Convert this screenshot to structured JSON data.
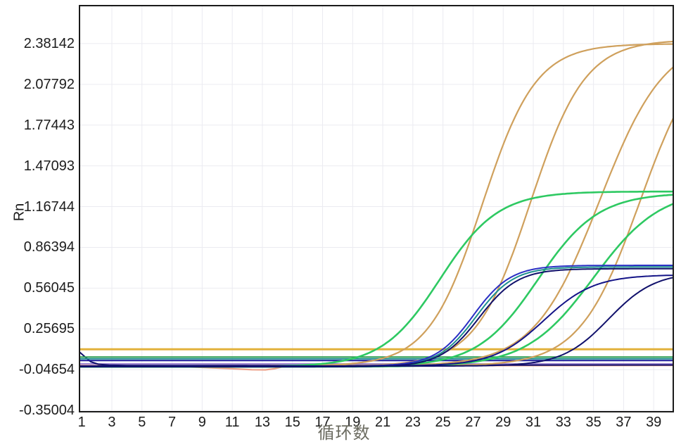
{
  "chart_data": {
    "type": "line",
    "title": "",
    "xlabel": "循环数",
    "ylabel": "Rn",
    "x_ticks": [
      1,
      3,
      5,
      7,
      9,
      11,
      13,
      15,
      17,
      19,
      21,
      23,
      25,
      27,
      29,
      31,
      33,
      35,
      37,
      39
    ],
    "y_ticks": [
      -0.35004,
      -0.04654,
      0.25695,
      0.56045,
      0.86394,
      1.16744,
      1.47093,
      1.77443,
      2.07792,
      2.38142
    ],
    "xlim": [
      0.85,
      40.3
    ],
    "ylim": [
      -0.36,
      2.664
    ],
    "grid": true,
    "legend": "none",
    "plot_border_color": "#1a1a1a",
    "grid_color": "#ebebf1",
    "threshold_value": 0.105,
    "series": [
      {
        "name": "baseline-purple",
        "kind": "flat",
        "value": -0.004,
        "color": "#9277cc",
        "width": 2
      },
      {
        "name": "baseline-salmon-dip",
        "kind": "points",
        "color": "#eda189",
        "width": 2.2,
        "points": [
          [
            0.85,
            -0.016
          ],
          [
            4,
            -0.018
          ],
          [
            7,
            -0.022
          ],
          [
            9,
            -0.03
          ],
          [
            11,
            -0.04
          ],
          [
            12.3,
            -0.047
          ],
          [
            13.2,
            -0.048
          ],
          [
            13.8,
            -0.04
          ],
          [
            14.3,
            -0.026
          ],
          [
            15,
            -0.021
          ],
          [
            17,
            -0.019
          ],
          [
            22,
            -0.018
          ],
          [
            30,
            -0.016
          ],
          [
            40.3,
            -0.015
          ]
        ]
      },
      {
        "name": "baseline-navy-transient",
        "kind": "points",
        "color": "#10106b",
        "width": 2,
        "points": [
          [
            0.85,
            0.085
          ],
          [
            1.2,
            0.05
          ],
          [
            1.6,
            0.012
          ],
          [
            2.1,
            -0.006
          ],
          [
            2.8,
            -0.013
          ],
          [
            4,
            -0.015
          ],
          [
            8,
            -0.016
          ],
          [
            14,
            -0.015
          ],
          [
            22,
            -0.014
          ],
          [
            30,
            -0.013
          ],
          [
            40.3,
            -0.012
          ]
        ]
      },
      {
        "name": "flat-navy-line",
        "kind": "flat",
        "value": 0.021,
        "color": "#1a1a99",
        "width": 2
      },
      {
        "name": "flat-teal-line",
        "kind": "flat",
        "value": 0.034,
        "color": "#1d8f8f",
        "width": 2
      },
      {
        "name": "flat-green-line",
        "kind": "flat",
        "value": 0.048,
        "color": "#2f9e52",
        "width": 2
      },
      {
        "name": "threshold-line",
        "kind": "flat",
        "value": 0.105,
        "color": "#e2b13c",
        "width": 3
      },
      {
        "name": "amp-tan-1",
        "kind": "logistic",
        "base": -0.02,
        "amp": 2.4,
        "mid": 27.6,
        "k": 0.56,
        "color": "#cfa05c",
        "width": 2.2
      },
      {
        "name": "amp-tan-2",
        "kind": "logistic",
        "base": -0.02,
        "amp": 2.43,
        "mid": 30.8,
        "k": 0.55,
        "color": "#cfa05c",
        "width": 2.2
      },
      {
        "name": "amp-tan-3",
        "kind": "logistic",
        "base": -0.02,
        "amp": 2.46,
        "mid": 35.4,
        "k": 0.46,
        "color": "#cfa05c",
        "width": 2.2
      },
      {
        "name": "amp-tan-4",
        "kind": "logistic",
        "base": -0.02,
        "amp": 2.46,
        "mid": 38.1,
        "k": 0.5,
        "color": "#cfa05c",
        "width": 2.2
      },
      {
        "name": "amp-green-1",
        "kind": "logistic",
        "base": -0.025,
        "amp": 1.305,
        "mid": 24.8,
        "k": 0.52,
        "color": "#2ec962",
        "width": 2.6
      },
      {
        "name": "amp-green-2",
        "kind": "logistic",
        "base": -0.025,
        "amp": 1.295,
        "mid": 31.3,
        "k": 0.5,
        "color": "#2ec962",
        "width": 2.6
      },
      {
        "name": "amp-green-3",
        "kind": "logistic",
        "base": -0.025,
        "amp": 1.325,
        "mid": 35.0,
        "k": 0.45,
        "color": "#2ec962",
        "width": 2.6
      },
      {
        "name": "amp-teal-1",
        "kind": "logistic",
        "base": -0.022,
        "amp": 0.74,
        "mid": 27.2,
        "k": 0.8,
        "color": "#1d8f8f",
        "width": 2
      },
      {
        "name": "amp-blue-1",
        "kind": "logistic",
        "base": -0.02,
        "amp": 0.75,
        "mid": 27.0,
        "k": 0.8,
        "color": "#2a2fc4",
        "width": 2
      },
      {
        "name": "amp-navy-1",
        "kind": "logistic",
        "base": -0.025,
        "amp": 0.73,
        "mid": 27.4,
        "k": 0.78,
        "color": "#10106b",
        "width": 2
      },
      {
        "name": "amp-navy-2",
        "kind": "logistic",
        "base": -0.02,
        "amp": 0.68,
        "mid": 31.7,
        "k": 0.6,
        "color": "#141487",
        "width": 2
      },
      {
        "name": "amp-navy-3",
        "kind": "logistic",
        "base": -0.02,
        "amp": 0.7,
        "mid": 36.0,
        "k": 0.65,
        "color": "#10106b",
        "width": 2
      }
    ]
  }
}
